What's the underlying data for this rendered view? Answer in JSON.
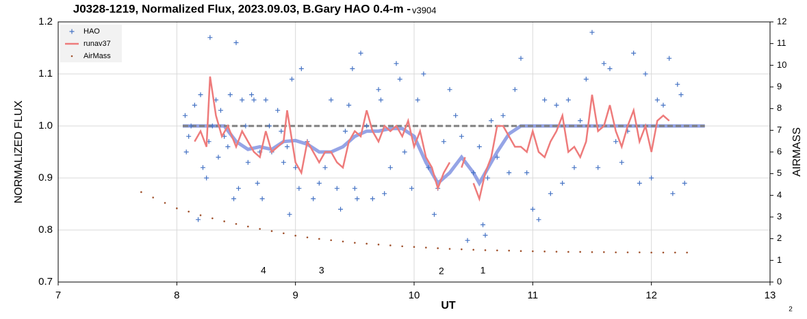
{
  "chart_data": {
    "type": "scatter",
    "title": "J0328-1219, Normalized Flux, 2023.09.03, B.Gary HAO 0.4-m - ",
    "subtitle": "v3904",
    "xlabel": "UT",
    "ylabel": "NORMALIZED FLUX",
    "y2label": "AIRMASS",
    "xlim": [
      7,
      13
    ],
    "xticks": [
      7,
      8,
      9,
      10,
      11,
      12,
      13
    ],
    "ylim": [
      0.7,
      1.2
    ],
    "yticks": [
      0.7,
      0.8,
      0.9,
      {
        "value": 1,
        "label": "1.0"
      },
      1.1,
      1.2
    ],
    "y2lim": [
      0,
      12
    ],
    "y2ticks": [
      0,
      1,
      2,
      3,
      4,
      5,
      6,
      7,
      8,
      9,
      10,
      11,
      12
    ],
    "grid": true,
    "legend": "upper left",
    "annotations": [
      {
        "text": "4",
        "x": 8.73,
        "y": 0.721
      },
      {
        "text": "3",
        "x": 9.22,
        "y": 0.721
      },
      {
        "text": "2",
        "x": 10.23,
        "y": 0.72
      },
      {
        "text": "1",
        "x": 10.58,
        "y": 0.721
      }
    ],
    "footnote": "2",
    "series": [
      {
        "name": "HAO",
        "type": "scatter",
        "color": "#4472c4",
        "x": [
          8.07,
          8.08,
          8.1,
          8.12,
          8.15,
          8.18,
          8.2,
          8.22,
          8.25,
          8.27,
          8.28,
          8.3,
          8.33,
          8.35,
          8.37,
          8.4,
          8.43,
          8.45,
          8.48,
          8.5,
          8.52,
          8.55,
          8.58,
          8.6,
          8.63,
          8.65,
          8.68,
          8.7,
          8.72,
          8.75,
          8.78,
          8.8,
          8.85,
          8.88,
          8.9,
          8.93,
          8.95,
          8.97,
          9.0,
          9.03,
          9.05,
          9.1,
          9.15,
          9.2,
          9.25,
          9.3,
          9.35,
          9.38,
          9.42,
          9.45,
          9.48,
          9.5,
          9.52,
          9.55,
          9.6,
          9.65,
          9.7,
          9.72,
          9.75,
          9.8,
          9.85,
          9.88,
          9.92,
          9.98,
          10.03,
          10.08,
          10.12,
          10.17,
          10.2,
          10.25,
          10.3,
          10.35,
          10.4,
          10.45,
          10.5,
          10.55,
          10.58,
          10.6,
          10.62,
          10.65,
          10.7,
          10.75,
          10.8,
          10.85,
          10.9,
          10.95,
          11.0,
          11.05,
          11.1,
          11.15,
          11.2,
          11.25,
          11.3,
          11.35,
          11.4,
          11.45,
          11.5,
          11.55,
          11.6,
          11.65,
          11.7,
          11.75,
          11.8,
          11.85,
          11.9,
          11.95,
          12.0,
          12.05,
          12.1,
          12.15,
          12.18,
          12.22,
          12.25,
          12.28
        ],
        "values": [
          1.02,
          0.95,
          0.98,
          1.0,
          1.04,
          0.82,
          1.06,
          0.92,
          0.9,
          0.97,
          1.17,
          1.0,
          1.05,
          0.94,
          1.03,
          0.98,
          0.96,
          1.06,
          0.86,
          1.16,
          0.88,
          1.05,
          1.0,
          0.93,
          1.06,
          1.05,
          0.89,
          0.95,
          0.86,
          1.05,
          1.0,
          0.95,
          1.03,
          0.99,
          0.93,
          0.96,
          0.83,
          1.09,
          0.92,
          0.88,
          1.11,
          0.97,
          0.86,
          0.89,
          0.92,
          1.05,
          0.88,
          0.84,
          0.99,
          1.04,
          1.11,
          0.88,
          0.86,
          1.14,
          1.0,
          0.86,
          1.07,
          1.05,
          0.87,
          0.92,
          1.12,
          1.09,
          0.95,
          0.88,
          1.05,
          1.1,
          0.92,
          0.83,
          0.88,
          0.97,
          1.07,
          1.02,
          0.98,
          0.78,
          0.91,
          0.96,
          0.81,
          0.79,
          0.9,
          1.01,
          0.94,
          1.02,
          0.91,
          1.07,
          1.13,
          0.91,
          0.84,
          0.82,
          1.05,
          0.87,
          1.04,
          0.89,
          1.05,
          0.92,
          1.01,
          1.09,
          1.18,
          0.92,
          1.12,
          1.11,
          0.97,
          0.93,
          0.99,
          1.14,
          0.89,
          1.1,
          0.9,
          1.05,
          1.04,
          1.13,
          0.87,
          1.08,
          1.06,
          0.89
        ]
      },
      {
        "name": "runav37",
        "type": "line",
        "color": "#ee7b7b",
        "x": [
          8.15,
          8.2,
          8.25,
          8.28,
          8.33,
          8.38,
          8.43,
          8.5,
          8.55,
          8.6,
          8.65,
          8.7,
          8.75,
          8.8,
          8.85,
          8.9,
          8.93,
          9.0,
          9.05,
          9.1,
          9.15,
          9.2,
          9.25,
          9.3,
          9.35,
          9.4,
          9.45,
          9.5,
          9.55,
          9.6,
          9.65,
          9.7,
          9.75,
          9.8,
          9.85,
          9.9,
          9.95,
          10.0,
          10.05,
          10.1,
          10.15,
          10.2,
          10.25,
          10.3,
          10.35,
          10.4,
          10.43,
          10.47,
          10.5,
          10.55,
          10.6,
          10.65,
          10.7,
          10.75,
          10.8,
          10.85,
          10.9,
          10.95,
          11.0,
          11.05,
          11.1,
          11.15,
          11.2,
          11.25,
          11.3,
          11.35,
          11.4,
          11.45,
          11.5,
          11.55,
          11.6,
          11.65,
          11.7,
          11.75,
          11.8,
          11.85,
          11.9,
          11.95,
          12.0,
          12.05,
          12.1,
          12.15
        ],
        "values": [
          0.97,
          0.99,
          0.96,
          1.095,
          1.02,
          0.98,
          1.0,
          0.96,
          0.99,
          0.97,
          0.95,
          0.94,
          0.99,
          0.95,
          0.96,
          0.97,
          1.03,
          0.93,
          0.91,
          0.97,
          0.95,
          0.93,
          0.95,
          0.95,
          0.93,
          0.92,
          0.97,
          0.99,
          0.98,
          1.03,
          0.99,
          0.97,
          1.0,
          0.99,
          1.0,
          0.98,
          1.01,
          0.96,
          0.99,
          0.94,
          0.92,
          0.88,
          0.91,
          0.93,
          null,
          0.92,
          0.94,
          null,
          0.89,
          0.86,
          0.91,
          0.94,
          1.0,
          1.0,
          0.98,
          0.96,
          0.96,
          0.95,
          0.99,
          0.95,
          0.94,
          0.97,
          0.99,
          1.02,
          0.95,
          0.96,
          0.94,
          0.97,
          1.06,
          0.99,
          1.0,
          1.04,
          0.99,
          0.96,
          1.0,
          1.03,
          0.97,
          1.0,
          0.95,
          1.01,
          1.02,
          1.01
        ]
      },
      {
        "name": "AirMass",
        "type": "scatter",
        "axis": "y2",
        "color": "#a0522d",
        "x": [
          7.7,
          7.8,
          7.9,
          8.0,
          8.1,
          8.2,
          8.3,
          8.4,
          8.5,
          8.6,
          8.7,
          8.8,
          8.9,
          9.0,
          9.1,
          9.2,
          9.3,
          9.4,
          9.5,
          9.6,
          9.7,
          9.8,
          9.9,
          10.0,
          10.1,
          10.2,
          10.3,
          10.4,
          10.5,
          10.6,
          10.7,
          10.8,
          10.9,
          11.0,
          11.1,
          11.2,
          11.3,
          11.4,
          11.5,
          11.6,
          11.7,
          11.8,
          11.9,
          12.0,
          12.1,
          12.2,
          12.3
        ],
        "values": [
          4.15,
          3.9,
          3.65,
          3.4,
          3.25,
          3.08,
          2.94,
          2.8,
          2.68,
          2.56,
          2.45,
          2.35,
          2.25,
          2.14,
          2.06,
          1.99,
          1.93,
          1.87,
          1.81,
          1.77,
          1.73,
          1.69,
          1.65,
          1.62,
          1.59,
          1.56,
          1.53,
          1.51,
          1.49,
          1.47,
          1.46,
          1.45,
          1.43,
          1.42,
          1.41,
          1.4,
          1.39,
          1.39,
          1.38,
          1.38,
          1.37,
          1.37,
          1.37,
          1.36,
          1.36,
          1.36,
          1.36
        ]
      }
    ],
    "lines": [
      {
        "color": "#7b8de0",
        "dashed": false,
        "x": [
          8.05,
          8.2,
          8.4,
          8.5,
          8.6,
          8.7,
          8.8,
          8.9,
          9.0,
          9.1,
          9.2,
          9.3,
          9.4,
          9.5,
          9.6,
          9.7,
          9.8,
          9.9,
          10.0,
          10.1,
          10.2,
          10.3,
          10.4,
          10.5,
          10.55,
          10.6,
          10.7,
          10.8,
          10.9,
          11.0,
          12.45
        ],
        "values": [
          1.0,
          1.0,
          1.0,
          0.97,
          0.955,
          0.96,
          0.955,
          0.97,
          0.972,
          0.965,
          0.95,
          0.95,
          0.96,
          0.98,
          0.99,
          0.99,
          0.995,
          0.995,
          0.98,
          0.93,
          0.89,
          0.91,
          0.94,
          0.91,
          0.89,
          0.91,
          0.95,
          0.985,
          1.0,
          1.0,
          1.0
        ]
      },
      {
        "color": "#7f7f7f",
        "dashed": true,
        "x": [
          8.05,
          12.45
        ],
        "values": [
          1.0,
          1.0
        ]
      }
    ]
  }
}
